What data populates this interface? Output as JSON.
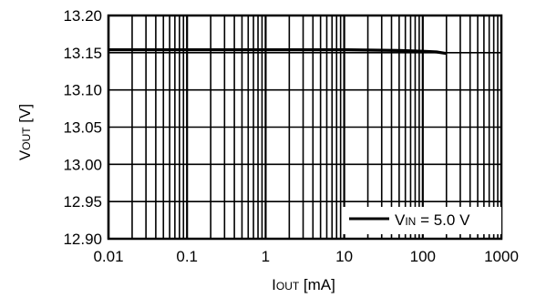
{
  "chart_data": {
    "type": "line",
    "x_scale": "log",
    "xlim": [
      0.01,
      1000
    ],
    "ylim": [
      12.9,
      13.2
    ],
    "x_ticks": [
      0.01,
      0.1,
      1,
      10,
      100,
      1000
    ],
    "x_tick_labels": [
      "0.01",
      "0.1",
      "1",
      "10",
      "100",
      "1000"
    ],
    "y_ticks": [
      12.9,
      12.95,
      13.0,
      13.05,
      13.1,
      13.15,
      13.2
    ],
    "y_tick_labels": [
      "12.90",
      "12.95",
      "13.00",
      "13.05",
      "13.10",
      "13.15",
      "13.20"
    ],
    "xlabel": {
      "main": "I",
      "sub": "OUT",
      "unit": " [mA]"
    },
    "ylabel": {
      "main": "V",
      "sub": "OUT",
      "unit": " [V]"
    },
    "grid": true,
    "legend_position": "bottom-right",
    "series": [
      {
        "name": {
          "main": "V",
          "sub": "IN",
          "rest": " = 5.0 V"
        },
        "color": "#000000",
        "x": [
          0.01,
          0.1,
          1,
          10,
          50,
          100,
          150,
          200
        ],
        "y": [
          13.154,
          13.154,
          13.154,
          13.154,
          13.153,
          13.152,
          13.151,
          13.149
        ]
      }
    ]
  }
}
